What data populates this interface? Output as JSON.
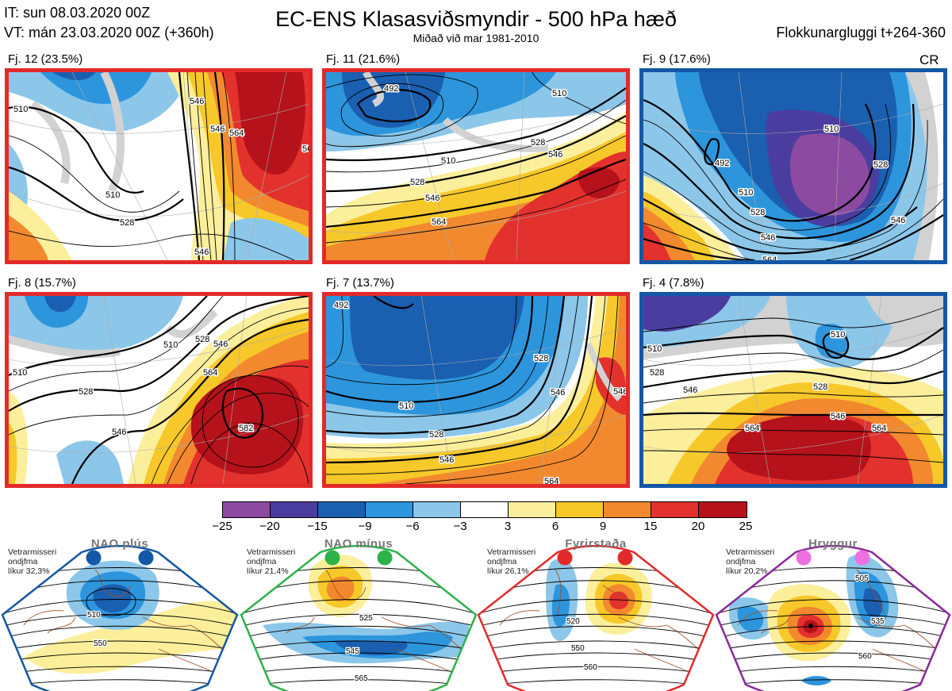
{
  "header": {
    "it": "IT: sun 08.03.2020 00Z",
    "vt": "VT: mán 23.03.2020 00Z  (+360h)",
    "title": "EC-ENS Klasasviðsmyndir - 500 hPa hæð",
    "subtitle": "Miðað við mar 1981-2010",
    "window": "Flokkunargluggi t+264-360",
    "cr": "CR"
  },
  "panels": [
    {
      "label": "Fj. 12 (23.5%)",
      "frame_color": "#e32a2a",
      "contours": [
        "510",
        "510",
        "528",
        "546",
        "564",
        "546",
        "546",
        "564"
      ]
    },
    {
      "label": "Fj. 11 (21.6%)",
      "frame_color": "#e32a2a",
      "contours": [
        "492",
        "510",
        "528",
        "546",
        "564",
        "546",
        "528",
        "510"
      ]
    },
    {
      "label": "Fj. 9 (17.6%)",
      "frame_color": "#1357a6",
      "contours": [
        "492",
        "510",
        "528",
        "546",
        "564",
        "510",
        "528",
        "546"
      ]
    },
    {
      "label": "Fj. 8 (15.7%)",
      "frame_color": "#e32a2a",
      "contours": [
        "510",
        "528",
        "546",
        "564",
        "582",
        "510",
        "528",
        "546"
      ]
    },
    {
      "label": "Fj. 7 (13.7%)",
      "frame_color": "#e32a2a",
      "contours": [
        "492",
        "510",
        "528",
        "546",
        "564",
        "528",
        "546",
        "546"
      ]
    },
    {
      "label": "Fj. 4 (7.8%)",
      "frame_color": "#1357a6",
      "contours": [
        "510",
        "528",
        "546",
        "564",
        "564",
        "528",
        "546",
        "510"
      ]
    }
  ],
  "colorbar": {
    "colors": [
      "#8c4aa0",
      "#4b3d9f",
      "#1a5fb0",
      "#2d95dc",
      "#8cc7ea",
      "#ffffff",
      "#fbef9c",
      "#f7c82a",
      "#f2892e",
      "#e3312d",
      "#b5121b"
    ],
    "ticks": [
      "−25",
      "−20",
      "−15",
      "−9",
      "−6",
      "−3",
      "3",
      "6",
      "9",
      "15",
      "20",
      "25"
    ]
  },
  "regimes": [
    {
      "name": "NAO plús",
      "note": [
        "Vetrarmisseri",
        "ondjfma",
        "líkur 32,3%"
      ],
      "dot_color": "#1357a6",
      "frame_color": "#1357a6",
      "contours": [
        "510",
        "550"
      ]
    },
    {
      "name": "NAO mínus",
      "note": [
        "Vetrarmisseri",
        "ondjfma",
        "líkur 21,4%"
      ],
      "dot_color": "#2db24a",
      "frame_color": "#2db24a",
      "contours": [
        "525",
        "545",
        "565"
      ]
    },
    {
      "name": "Fyrirstaða",
      "note": [
        "Vetrarmisseri",
        "ondjfma",
        "líkur 26,1%"
      ],
      "dot_color": "#e32a2a",
      "frame_color": "#e32a2a",
      "contours": [
        "520",
        "550",
        "560"
      ]
    },
    {
      "name": "Hryggur",
      "note": [
        "Vetrarmisseri",
        "ondjfma",
        "líkur 20,2%"
      ],
      "dot_color": "#ee6fe0",
      "frame_color": "#8a2a9a",
      "contours": [
        "505",
        "535",
        "560"
      ]
    }
  ]
}
